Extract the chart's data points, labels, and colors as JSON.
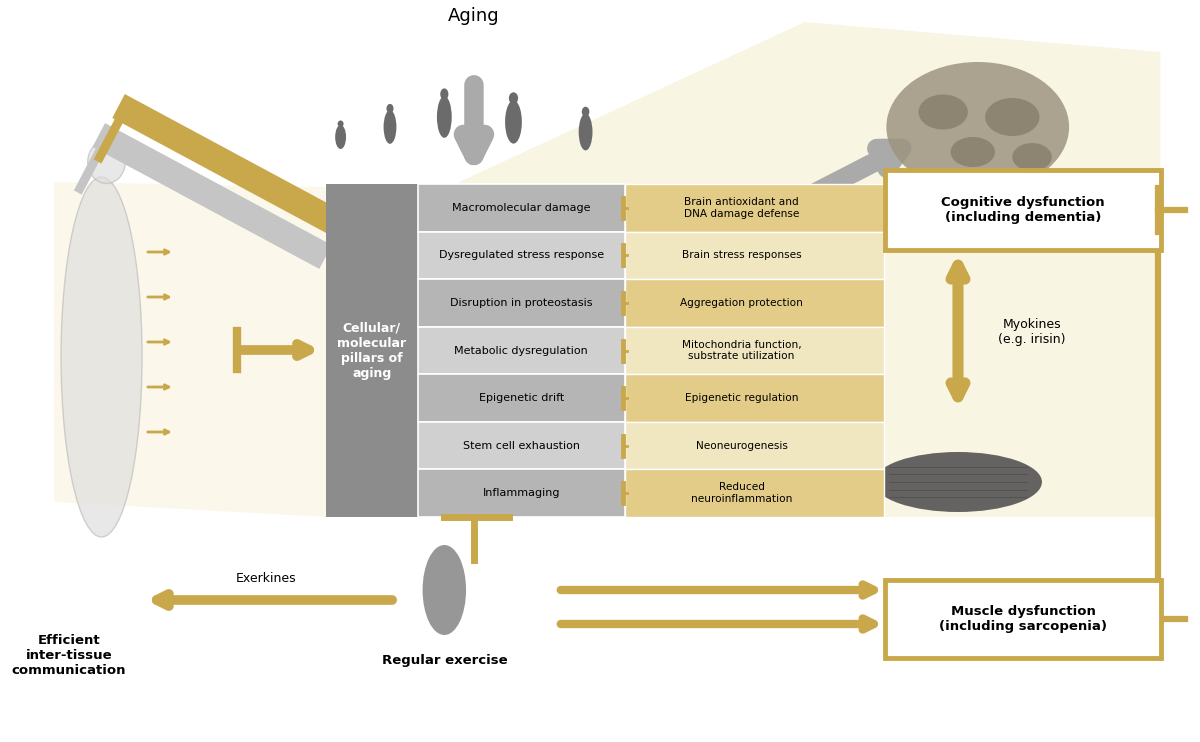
{
  "bg_color": "#ffffff",
  "gold": "#C9A84C",
  "gold_light": "#E2CC88",
  "gold_pale": "#F0E6C0",
  "gray_dark": "#6B6B6B",
  "gray_med": "#9A9A9A",
  "gray_light": "#C5C5C5",
  "gray_box": "#8C8C8C",
  "gray_stripe_a": "#B5B5B5",
  "gray_stripe_b": "#D0D0D0",
  "title": "Aging",
  "left_items": [
    "Macromolecular damage",
    "Dysregulated stress response",
    "Disruption in proteostasis",
    "Metabolic dysregulation",
    "Epigenetic drift",
    "Stem cell exhaustion",
    "Inflammaging"
  ],
  "right_items": [
    "Brain antioxidant and\nDNA damage defense",
    "Brain stress responses",
    "Aggregation protection",
    "Mitochondria function,\nsubstrate utilization",
    "Epigenetic regulation",
    "Neoneurogenesis",
    "Reduced\nneuroinflammation"
  ],
  "center_label": "Cellular/\nmolecular\npillars of\naging",
  "cognitive_label": "Cognitive dysfunction\n(including dementia)",
  "muscle_label": "Muscle dysfunction\n(including sarcopenia)",
  "efficient_label": "Efficient\ninter-tissue\ncommunication",
  "regular_exercise_label": "Regular exercise",
  "exerkines_label": "Exerkines",
  "myokines_label": "Myokines\n(e.g. irisin)"
}
